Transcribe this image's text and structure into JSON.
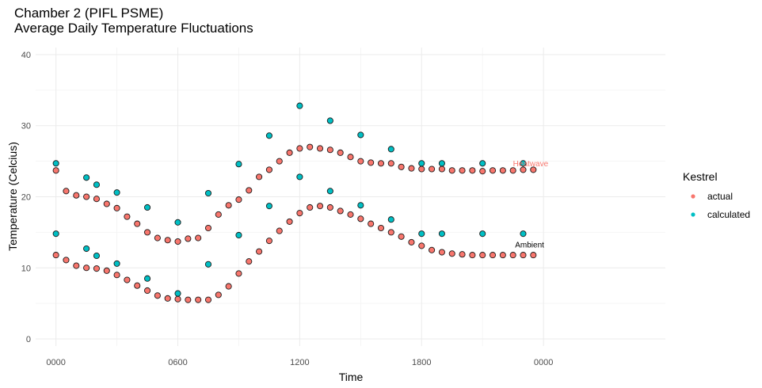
{
  "chart_data": {
    "type": "scatter",
    "title": "Chamber 2 (PIFL PSME)",
    "subtitle": "Average Daily Temperature Fluctuations",
    "xlabel": "Time",
    "ylabel": "Temperature (Celcius)",
    "x_unit": "hours",
    "xlim": [
      -1,
      30
    ],
    "ylim": [
      -1,
      41
    ],
    "x_ticks": [
      0,
      6,
      12,
      18,
      24
    ],
    "x_tick_labels": [
      "0000",
      "0600",
      "1200",
      "1800",
      "0000"
    ],
    "y_ticks": [
      0,
      10,
      20,
      30,
      40
    ],
    "grid": true,
    "legend": {
      "title": "Kestrel",
      "position": "right",
      "entries": [
        {
          "label": "actual",
          "color": "#F8766D"
        },
        {
          "label": "calculated",
          "color": "#00BFC4"
        }
      ]
    },
    "annotations": [
      {
        "text": "Heatwave",
        "x": 22.5,
        "y": 24.6,
        "color": "#F8766D"
      },
      {
        "text": "Ambient",
        "x": 22.6,
        "y": 13.2,
        "color": "#000000"
      }
    ],
    "series": [
      {
        "name": "actual",
        "color": "#F8766D",
        "x": [
          0,
          0.5,
          1,
          1.5,
          2,
          2.5,
          3,
          3.5,
          4,
          4.5,
          5,
          5.5,
          6,
          6.5,
          7,
          7.5,
          8,
          8.5,
          9,
          9.5,
          10,
          10.5,
          11,
          11.5,
          12,
          12.5,
          13,
          13.5,
          14,
          14.5,
          15,
          15.5,
          16,
          16.5,
          17,
          17.5,
          18,
          18.5,
          19,
          19.5,
          20,
          20.5,
          21,
          21.5,
          22,
          22.5,
          23,
          23.5,
          0,
          0.5,
          1,
          1.5,
          2,
          2.5,
          3,
          3.5,
          4,
          4.5,
          5,
          5.5,
          6,
          6.5,
          7,
          7.5,
          8,
          8.5,
          9,
          9.5,
          10,
          10.5,
          11,
          11.5,
          12,
          12.5,
          13,
          13.5,
          14,
          14.5,
          15,
          15.5,
          16,
          16.5,
          17,
          17.5,
          18,
          18.5,
          19,
          19.5,
          20,
          20.5,
          21,
          21.5,
          22,
          22.5,
          23,
          23.5
        ],
        "y": [
          23.7,
          20.8,
          20.2,
          20.0,
          19.7,
          19.0,
          18.4,
          17.2,
          16.2,
          15.0,
          14.2,
          13.9,
          13.7,
          14.1,
          14.2,
          15.6,
          17.5,
          18.8,
          19.6,
          20.9,
          22.8,
          23.8,
          25.0,
          26.2,
          26.8,
          27.0,
          26.8,
          26.6,
          26.2,
          25.6,
          25.0,
          24.8,
          24.7,
          24.7,
          24.2,
          24.0,
          23.9,
          23.9,
          23.9,
          23.7,
          23.7,
          23.7,
          23.6,
          23.7,
          23.7,
          23.7,
          23.8,
          23.8,
          11.8,
          11.1,
          10.3,
          10.0,
          9.9,
          9.6,
          9.0,
          8.3,
          7.5,
          6.8,
          6.1,
          5.7,
          5.6,
          5.5,
          5.5,
          5.5,
          6.2,
          7.4,
          9.2,
          10.9,
          12.3,
          13.8,
          15.2,
          16.5,
          17.7,
          18.5,
          18.7,
          18.5,
          18.0,
          17.5,
          16.9,
          16.2,
          15.6,
          15.0,
          14.4,
          13.6,
          13.1,
          12.5,
          12.2,
          12.0,
          11.9,
          11.8,
          11.8,
          11.8,
          11.8,
          11.8,
          11.8,
          11.8
        ]
      },
      {
        "name": "calculated",
        "color": "#00BFC4",
        "x": [
          0,
          1.5,
          2,
          3,
          4.5,
          6,
          7.5,
          9,
          10.5,
          12,
          13.5,
          15,
          16.5,
          18,
          19,
          21,
          23,
          0,
          1.5,
          2,
          3,
          4.5,
          6,
          7.5,
          9,
          10.5,
          12,
          13.5,
          15,
          16.5,
          18,
          19,
          21,
          23
        ],
        "y": [
          24.7,
          22.7,
          21.7,
          20.6,
          18.5,
          16.4,
          20.5,
          24.6,
          28.6,
          32.8,
          30.7,
          28.7,
          26.7,
          24.7,
          24.7,
          24.7,
          24.7,
          14.8,
          12.7,
          11.7,
          10.6,
          8.5,
          6.4,
          10.5,
          14.6,
          18.7,
          22.8,
          20.8,
          18.8,
          16.8,
          14.8,
          14.8,
          14.8,
          14.8
        ]
      }
    ]
  }
}
